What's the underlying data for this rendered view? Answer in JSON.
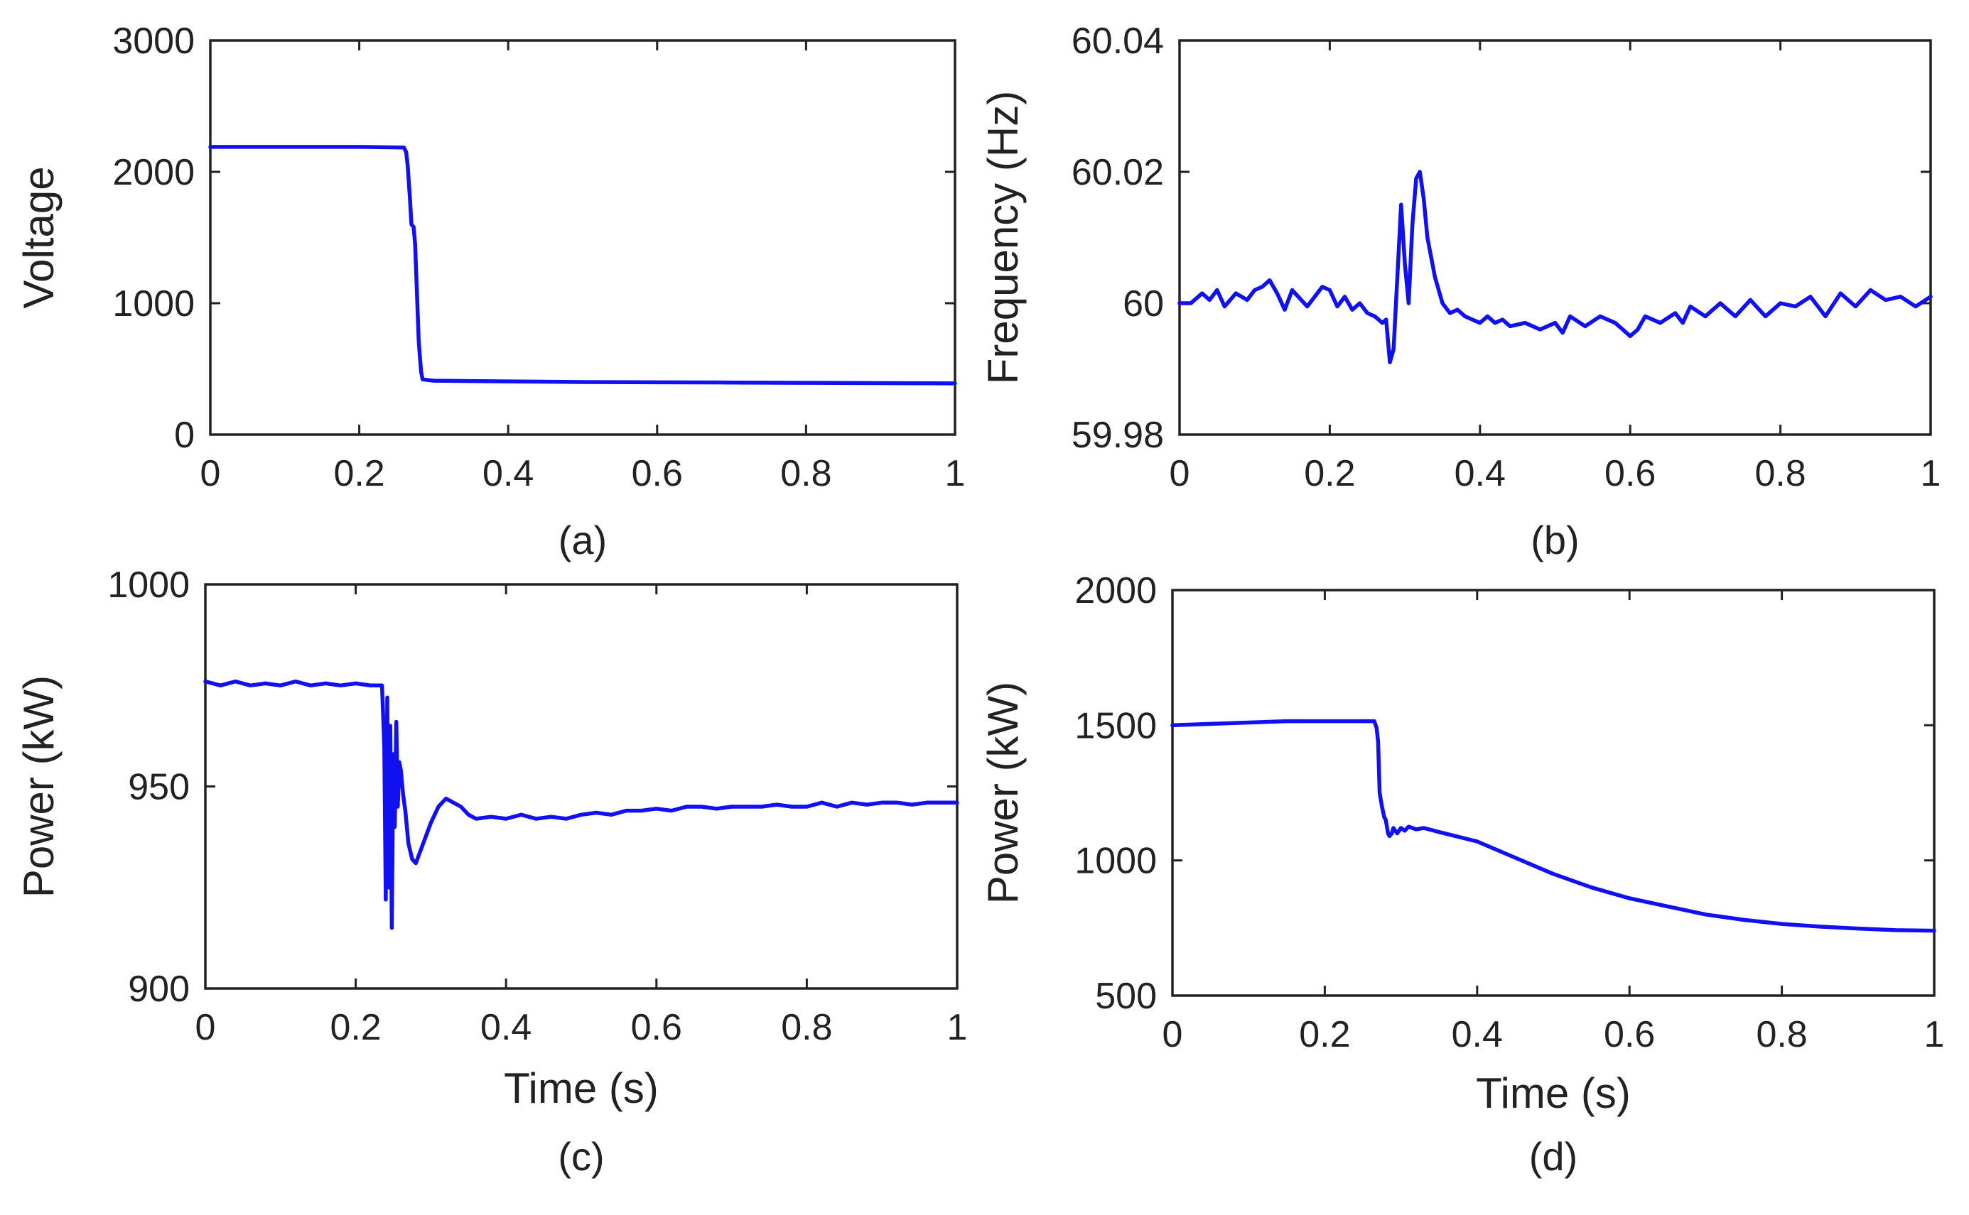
{
  "chart_data": [
    {
      "panel": "a",
      "type": "line",
      "caption": "(a)",
      "xlabel": "",
      "ylabel": "Voltage",
      "xlim": [
        0,
        1
      ],
      "ylim": [
        0,
        3000
      ],
      "xticks": [
        0,
        0.2,
        0.4,
        0.6,
        0.8,
        1
      ],
      "xtick_labels": [
        "0",
        "0.2",
        "0.4",
        "0.6",
        "0.8",
        "1"
      ],
      "yticks": [
        0,
        1000,
        2000,
        3000
      ],
      "ytick_labels": [
        "0",
        "1000",
        "2000",
        "3000"
      ],
      "grid": false,
      "series": [
        {
          "name": "Voltage",
          "color": "#1010f0",
          "x": [
            0,
            0.1,
            0.2,
            0.26,
            0.263,
            0.265,
            0.268,
            0.27,
            0.273,
            0.275,
            0.278,
            0.28,
            0.283,
            0.285,
            0.3,
            0.4,
            0.5,
            0.6,
            0.7,
            0.8,
            0.9,
            1
          ],
          "y": [
            2190,
            2190,
            2190,
            2185,
            2150,
            2050,
            1800,
            1600,
            1580,
            1450,
            1000,
            700,
            480,
            420,
            410,
            405,
            400,
            398,
            396,
            394,
            392,
            390
          ]
        }
      ]
    },
    {
      "panel": "b",
      "type": "line",
      "caption": "(b)",
      "xlabel": "",
      "ylabel": "Frequency (Hz)",
      "xlim": [
        0,
        1
      ],
      "ylim": [
        59.98,
        60.04
      ],
      "xticks": [
        0,
        0.2,
        0.4,
        0.6,
        0.8,
        1
      ],
      "xtick_labels": [
        "0",
        "0.2",
        "0.4",
        "0.6",
        "0.8",
        "1"
      ],
      "yticks": [
        59.98,
        60,
        60.02,
        60.04
      ],
      "ytick_labels": [
        "59.98",
        "60",
        "60.02",
        "60.04"
      ],
      "grid": false,
      "series": [
        {
          "name": "Frequency",
          "color": "#1010f0",
          "x": [
            0,
            0.015,
            0.03,
            0.04,
            0.05,
            0.06,
            0.075,
            0.09,
            0.1,
            0.11,
            0.12,
            0.13,
            0.14,
            0.15,
            0.17,
            0.19,
            0.2,
            0.21,
            0.22,
            0.23,
            0.24,
            0.25,
            0.26,
            0.27,
            0.275,
            0.28,
            0.285,
            0.29,
            0.295,
            0.3,
            0.305,
            0.31,
            0.315,
            0.32,
            0.325,
            0.33,
            0.34,
            0.35,
            0.36,
            0.37,
            0.38,
            0.39,
            0.4,
            0.41,
            0.42,
            0.43,
            0.44,
            0.46,
            0.48,
            0.5,
            0.51,
            0.52,
            0.54,
            0.56,
            0.58,
            0.6,
            0.61,
            0.62,
            0.64,
            0.66,
            0.67,
            0.68,
            0.7,
            0.72,
            0.74,
            0.76,
            0.78,
            0.8,
            0.82,
            0.84,
            0.86,
            0.88,
            0.9,
            0.92,
            0.94,
            0.96,
            0.98,
            1
          ],
          "y": [
            60.0,
            60.0,
            60.0015,
            60.0005,
            60.002,
            59.9995,
            60.0015,
            60.0005,
            60.002,
            60.0025,
            60.0035,
            60.0015,
            59.999,
            60.002,
            59.9995,
            60.0025,
            60.002,
            59.9995,
            60.001,
            59.999,
            60.0,
            59.9985,
            59.998,
            59.997,
            59.9975,
            59.991,
            59.993,
            60.004,
            60.015,
            60.006,
            60.0,
            60.012,
            60.019,
            60.02,
            60.016,
            60.01,
            60.004,
            60.0,
            59.9985,
            59.999,
            59.998,
            59.9975,
            59.997,
            59.998,
            59.997,
            59.9975,
            59.9965,
            59.997,
            59.996,
            59.997,
            59.9955,
            59.998,
            59.9965,
            59.998,
            59.997,
            59.995,
            59.996,
            59.998,
            59.997,
            59.9985,
            59.997,
            59.9995,
            59.998,
            60.0,
            59.998,
            60.0005,
            59.998,
            60.0,
            59.9995,
            60.001,
            59.998,
            60.0015,
            59.9995,
            60.002,
            60.0005,
            60.001,
            59.9995,
            60.001
          ]
        }
      ]
    },
    {
      "panel": "c",
      "type": "line",
      "caption": "(c)",
      "xlabel": "Time (s)",
      "ylabel": "Power (kW)",
      "xlim": [
        0,
        1
      ],
      "ylim": [
        900,
        1000
      ],
      "xticks": [
        0,
        0.2,
        0.4,
        0.6,
        0.8,
        1
      ],
      "xtick_labels": [
        "0",
        "0.2",
        "0.4",
        "0.6",
        "0.8",
        "1"
      ],
      "yticks": [
        900,
        950,
        1000
      ],
      "ytick_labels": [
        "900",
        "950",
        "1000"
      ],
      "grid": false,
      "series": [
        {
          "name": "Power",
          "color": "#1010f0",
          "x": [
            0,
            0.02,
            0.04,
            0.06,
            0.08,
            0.1,
            0.12,
            0.14,
            0.16,
            0.18,
            0.2,
            0.22,
            0.235,
            0.238,
            0.24,
            0.242,
            0.244,
            0.246,
            0.248,
            0.25,
            0.252,
            0.254,
            0.256,
            0.258,
            0.26,
            0.263,
            0.266,
            0.27,
            0.275,
            0.28,
            0.29,
            0.3,
            0.31,
            0.32,
            0.33,
            0.34,
            0.35,
            0.36,
            0.38,
            0.4,
            0.42,
            0.44,
            0.46,
            0.48,
            0.5,
            0.52,
            0.54,
            0.56,
            0.58,
            0.6,
            0.62,
            0.64,
            0.66,
            0.68,
            0.7,
            0.72,
            0.74,
            0.76,
            0.78,
            0.8,
            0.82,
            0.84,
            0.86,
            0.88,
            0.9,
            0.92,
            0.94,
            0.96,
            0.98,
            1
          ],
          "y": [
            976,
            975,
            976,
            975,
            975.5,
            975,
            976,
            975,
            975.5,
            975,
            975.5,
            975,
            975,
            960,
            922,
            972,
            925,
            965,
            915,
            958,
            940,
            966,
            945,
            956,
            954,
            948,
            944,
            936,
            932,
            931,
            936,
            941,
            945,
            947,
            946,
            945,
            943,
            942,
            942.5,
            942,
            943,
            942,
            942.5,
            942,
            943,
            943.5,
            943,
            944,
            944,
            944.5,
            944,
            945,
            945,
            944.5,
            945,
            945,
            945,
            945.5,
            945,
            945,
            946,
            945,
            946,
            945.5,
            946,
            946,
            945.5,
            946,
            946,
            946
          ]
        }
      ]
    },
    {
      "panel": "d",
      "type": "line",
      "caption": "(d)",
      "xlabel": "Time (s)",
      "ylabel": "Power (kW)",
      "xlim": [
        0,
        1
      ],
      "ylim": [
        500,
        2000
      ],
      "xticks": [
        0,
        0.2,
        0.4,
        0.6,
        0.8,
        1
      ],
      "xtick_labels": [
        "0",
        "0.2",
        "0.4",
        "0.6",
        "0.8",
        "1"
      ],
      "yticks": [
        500,
        1000,
        1500,
        2000
      ],
      "ytick_labels": [
        "500",
        "1000",
        "1500",
        "2000"
      ],
      "grid": false,
      "series": [
        {
          "name": "Power",
          "color": "#1010f0",
          "x": [
            0,
            0.05,
            0.1,
            0.15,
            0.2,
            0.25,
            0.26,
            0.265,
            0.268,
            0.27,
            0.272,
            0.275,
            0.278,
            0.28,
            0.283,
            0.285,
            0.288,
            0.29,
            0.295,
            0.3,
            0.305,
            0.31,
            0.32,
            0.33,
            0.35,
            0.4,
            0.45,
            0.5,
            0.55,
            0.6,
            0.65,
            0.7,
            0.75,
            0.8,
            0.85,
            0.9,
            0.95,
            1
          ],
          "y": [
            1500,
            1505,
            1510,
            1515,
            1515,
            1515,
            1515,
            1515,
            1490,
            1440,
            1250,
            1200,
            1160,
            1150,
            1100,
            1090,
            1100,
            1120,
            1100,
            1120,
            1110,
            1125,
            1115,
            1120,
            1105,
            1070,
            1010,
            950,
            900,
            860,
            830,
            800,
            780,
            765,
            755,
            748,
            742,
            740
          ]
        }
      ]
    }
  ]
}
